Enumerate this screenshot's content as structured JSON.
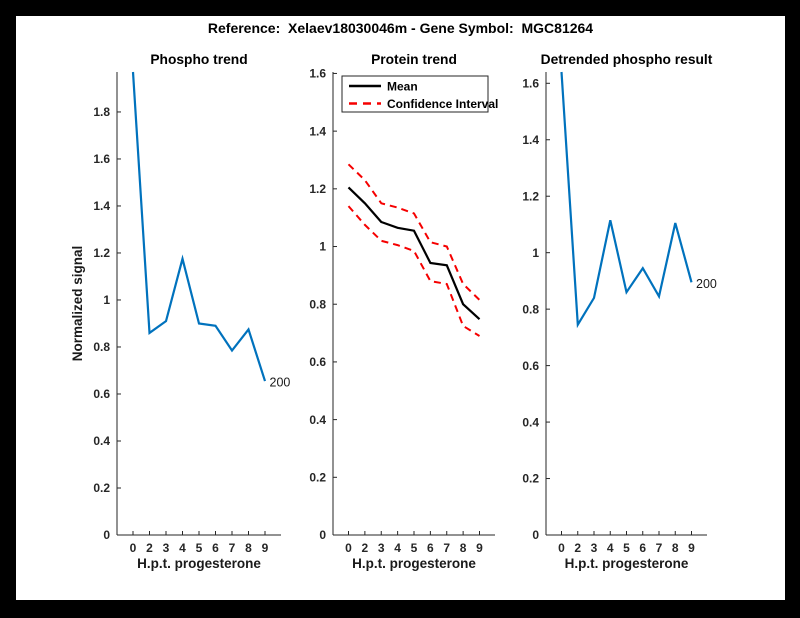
{
  "figure_title": "Reference:  Xelaev18030046m - Gene Symbol:  MGC81264",
  "colors": {
    "page_background": "#000000",
    "figure_background": "#ffffff",
    "line_blue": "#0072bd",
    "ci_red": "#f50000",
    "mean_black": "#000000",
    "axis": "#262626"
  },
  "chart_data": [
    {
      "type": "line",
      "title": "Phospho trend",
      "xlabel": "H.p.t. progesterone",
      "ylabel": "Normalized signal",
      "x_ticklabels": [
        "0",
        "2",
        "3",
        "4",
        "5",
        "6",
        "7",
        "8",
        "9"
      ],
      "yticks": [
        "0",
        "0.2",
        "0.4",
        "0.6",
        "0.8",
        "1",
        "1.2",
        "1.4",
        "1.6",
        "1.8"
      ],
      "ylim": [
        0,
        1.97
      ],
      "grid": false,
      "legend": null,
      "series": [
        {
          "name": "Phospho signal",
          "color": "#0072bd",
          "style": "solid",
          "width": 2.2,
          "values": [
            1.97,
            0.86,
            0.91,
            1.175,
            0.9,
            0.89,
            0.785,
            0.875,
            0.655
          ]
        }
      ],
      "end_annotation": "200"
    },
    {
      "type": "line",
      "title": "Protein trend",
      "xlabel": "H.p.t. progesterone",
      "ylabel": "",
      "x_ticklabels": [
        "0",
        "2",
        "3",
        "4",
        "5",
        "6",
        "7",
        "8",
        "9"
      ],
      "yticks": [
        "0",
        "0.2",
        "0.4",
        "0.6",
        "0.8",
        "1",
        "1.2",
        "1.4",
        "1.6"
      ],
      "ylim": [
        0,
        1.605
      ],
      "grid": false,
      "legend": {
        "position": "northwest",
        "entries": [
          {
            "label": "Mean",
            "color": "#000000",
            "style": "solid"
          },
          {
            "label": "Confidence Interval",
            "color": "#f50000",
            "style": "dashed"
          }
        ]
      },
      "series": [
        {
          "name": "Confidence interval upper",
          "color": "#f50000",
          "style": "dashed",
          "width": 2,
          "values": [
            1.285,
            1.23,
            1.15,
            1.135,
            1.115,
            1.015,
            1.0,
            0.87,
            0.815
          ]
        },
        {
          "name": "Confidence interval lower",
          "color": "#f50000",
          "style": "dashed",
          "width": 2,
          "values": [
            1.14,
            1.075,
            1.02,
            1.005,
            0.985,
            0.88,
            0.87,
            0.725,
            0.69
          ]
        },
        {
          "name": "Mean",
          "color": "#000000",
          "style": "solid",
          "width": 2.2,
          "values": [
            1.205,
            1.15,
            1.085,
            1.065,
            1.055,
            0.943,
            0.935,
            0.8,
            0.748
          ]
        }
      ],
      "end_annotation": null
    },
    {
      "type": "line",
      "title": "Detrended phospho result",
      "xlabel": "H.p.t. progesterone",
      "ylabel": "",
      "x_ticklabels": [
        "0",
        "2",
        "3",
        "4",
        "5",
        "6",
        "7",
        "8",
        "9"
      ],
      "yticks": [
        "0",
        "0.2",
        "0.4",
        "0.6",
        "0.8",
        "1",
        "1.2",
        "1.4",
        "1.6"
      ],
      "ylim": [
        0,
        1.64
      ],
      "grid": false,
      "legend": null,
      "series": [
        {
          "name": "Detrended phospho signal",
          "color": "#0072bd",
          "style": "solid",
          "width": 2.2,
          "values": [
            1.64,
            0.745,
            0.84,
            1.115,
            0.86,
            0.945,
            0.845,
            1.105,
            0.895
          ]
        }
      ],
      "end_annotation": "200"
    }
  ]
}
